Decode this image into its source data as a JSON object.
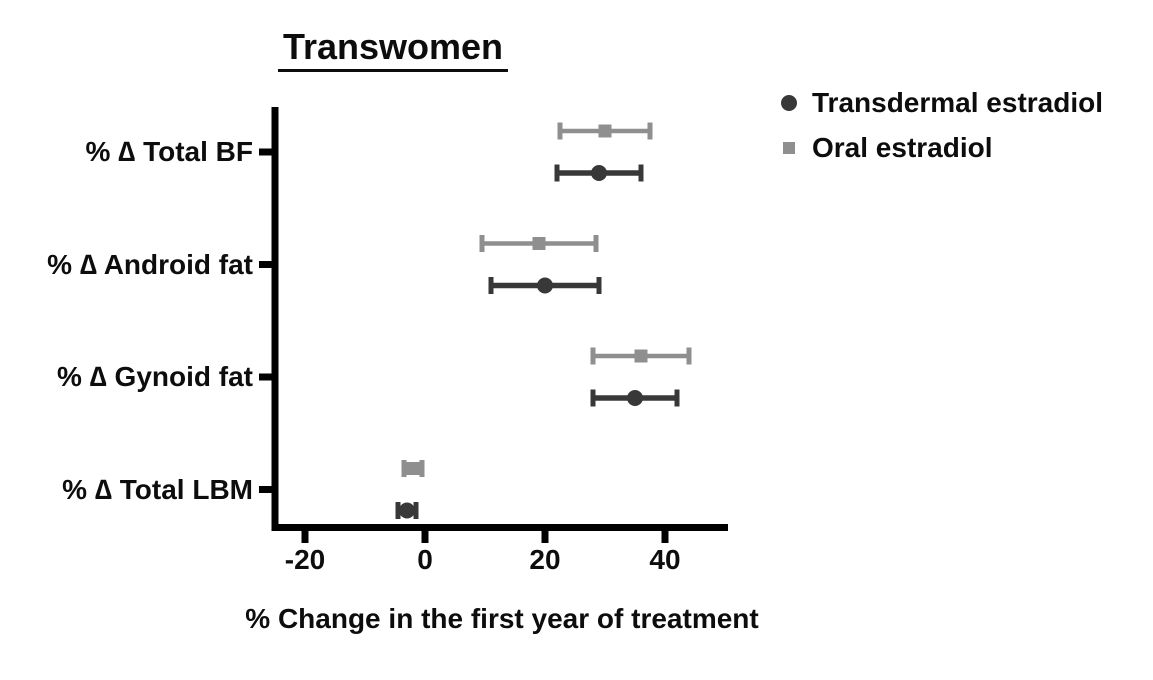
{
  "title": "Transwomen",
  "legend": {
    "items": [
      {
        "label": "Transdermal estradiol",
        "marker": "circle",
        "color": "#383838"
      },
      {
        "label": "Oral estradiol",
        "marker": "square",
        "color": "#8f8f8f"
      }
    ]
  },
  "chart_data": {
    "type": "scatter",
    "subtype": "horizontal-forest-plot-with-error-bars",
    "title": "Transwomen",
    "xlabel": "% Change in the first year of treatment",
    "categories": [
      "% ∆ Total BF",
      "% ∆ Android fat",
      "% ∆ Gynoid fat",
      "% ∆ Total LBM"
    ],
    "xticks": [
      -20,
      0,
      20,
      40
    ],
    "xtick_labels": [
      "-20",
      "0",
      "20",
      "40"
    ],
    "xlim": [
      -25.5,
      50.5
    ],
    "grid": false,
    "legend_position": "top-right",
    "axis_color": "#000000",
    "series": [
      {
        "name": "Oral estradiol",
        "marker": "square",
        "color": "#8f8f8f",
        "row_position": "upper",
        "values": [
          30,
          19,
          36,
          -2
        ],
        "ci_low": [
          22.5,
          9.5,
          28,
          -3.5
        ],
        "ci_high": [
          37.5,
          28.5,
          44,
          -0.5
        ]
      },
      {
        "name": "Transdermal estradiol",
        "marker": "circle",
        "color": "#383838",
        "row_position": "lower",
        "values": [
          29,
          20,
          35,
          -3
        ],
        "ci_low": [
          22,
          11,
          28,
          -4.5
        ],
        "ci_high": [
          36,
          29,
          42,
          -1.5
        ]
      }
    ]
  }
}
